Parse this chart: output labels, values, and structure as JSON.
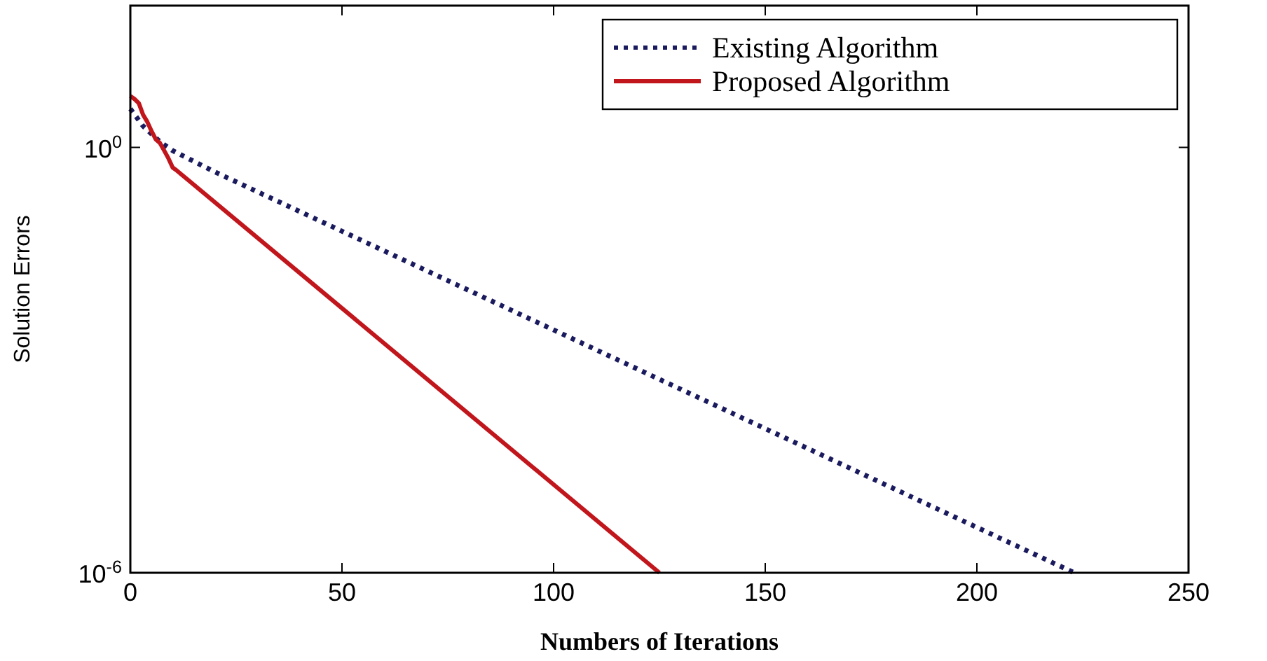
{
  "chart_data": {
    "type": "line",
    "xlabel": "Numbers of Iterations",
    "ylabel": "Solution Errors",
    "log": "y",
    "xlim": [
      0,
      250
    ],
    "xticks": [
      0,
      50,
      100,
      150,
      200,
      250
    ],
    "ylim": [
      1e-06,
      100
    ],
    "yticks": [
      {
        "value": 1e-06,
        "label": "10$^{-6}$"
      },
      {
        "value": 1,
        "label": "10$^{0}$"
      }
    ],
    "legend": "top right",
    "grid": false,
    "series": [
      {
        "name": "Existing Algorithm",
        "color": "#1a1a5e",
        "line_style": "dotted",
        "x": [
          0,
          3,
          7,
          10,
          20,
          223
        ],
        "values": [
          3.5,
          2,
          1.2,
          0.9,
          0.45,
          1e-06
        ]
      },
      {
        "name": "Proposed Algorithm",
        "color": "#c0161c",
        "line_style": "solid",
        "x": [
          0,
          1,
          2,
          3,
          4,
          5,
          6,
          7,
          8,
          9,
          10,
          11,
          125
        ],
        "values": [
          5.3,
          4.8,
          4.2,
          2.9,
          2.3,
          1.7,
          1.3,
          1.15,
          0.9,
          0.7,
          0.52,
          0.47,
          1e-06
        ]
      }
    ]
  }
}
